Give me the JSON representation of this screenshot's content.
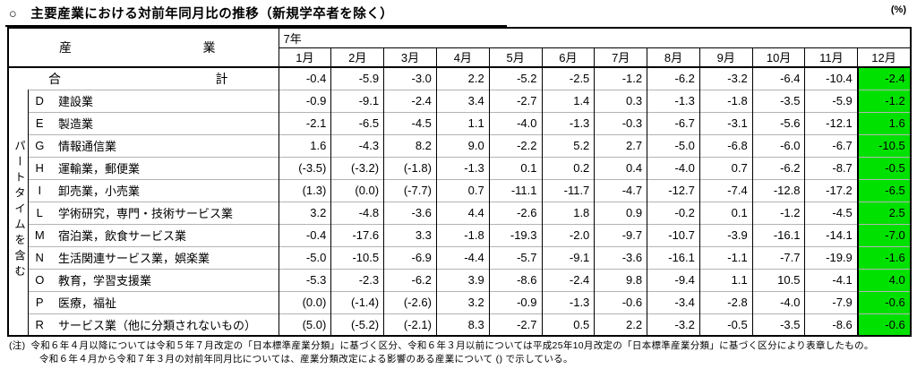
{
  "page": {
    "title": "○　主要産業における対前年同月比の推移（新規学卒者を除く）",
    "unit_label": "(%)"
  },
  "table": {
    "highlight_color": "#00E100",
    "industry_header": {
      "left": "産",
      "right": "業"
    },
    "year_header": "7年",
    "months": [
      "1月",
      "2月",
      "3月",
      "4月",
      "5月",
      "6月",
      "7月",
      "8月",
      "9月",
      "10月",
      "11月",
      "12月"
    ],
    "side_label": "パートタイムを含む",
    "total_row": {
      "label_left": "合",
      "label_right": "計",
      "values": [
        "-0.4",
        "-5.9",
        "-3.0",
        "2.2",
        "-5.2",
        "-2.5",
        "-1.2",
        "-6.2",
        "-3.2",
        "-6.4",
        "-10.4",
        "-2.4"
      ]
    },
    "rows": [
      {
        "code": "D",
        "name": "建設業",
        "values": [
          "-0.9",
          "-9.1",
          "-2.4",
          "3.4",
          "-2.7",
          "1.4",
          "0.3",
          "-1.3",
          "-1.8",
          "-3.5",
          "-5.9",
          "-1.2"
        ]
      },
      {
        "code": "E",
        "name": "製造業",
        "values": [
          "-2.1",
          "-6.5",
          "-4.5",
          "1.1",
          "-4.0",
          "-1.3",
          "-0.3",
          "-6.7",
          "-3.1",
          "-5.6",
          "-12.1",
          "1.6"
        ]
      },
      {
        "code": "G",
        "name": "情報通信業",
        "values": [
          "1.6",
          "-4.3",
          "8.2",
          "9.0",
          "-2.2",
          "5.2",
          "2.7",
          "-5.0",
          "-6.8",
          "-6.0",
          "-6.7",
          "-10.5"
        ]
      },
      {
        "code": "H",
        "name": "運輸業，郵便業",
        "values": [
          "(-3.5)",
          "(-3.2)",
          "(-1.8)",
          "-1.3",
          "0.1",
          "0.2",
          "0.4",
          "-4.0",
          "0.7",
          "-6.2",
          "-8.7",
          "-0.5"
        ]
      },
      {
        "code": "I",
        "name": "卸売業，小売業",
        "values": [
          "(1.3)",
          "(0.0)",
          "(-7.7)",
          "0.7",
          "-11.1",
          "-11.7",
          "-4.7",
          "-12.7",
          "-7.4",
          "-12.8",
          "-17.2",
          "-6.5"
        ]
      },
      {
        "code": "L",
        "name": "学術研究，専門・技術サービス業",
        "values": [
          "3.2",
          "-4.8",
          "-3.6",
          "4.4",
          "-2.6",
          "1.8",
          "0.9",
          "-0.2",
          "0.1",
          "-1.2",
          "-4.5",
          "2.5"
        ]
      },
      {
        "code": "M",
        "name": "宿泊業，飲食サービス業",
        "values": [
          "-0.4",
          "-17.6",
          "3.3",
          "-1.8",
          "-19.3",
          "-2.0",
          "-9.7",
          "-10.7",
          "-3.9",
          "-16.1",
          "-14.1",
          "-7.0"
        ]
      },
      {
        "code": "N",
        "name": "生活関連サービス業，娯楽業",
        "values": [
          "-5.0",
          "-10.5",
          "-6.9",
          "-4.4",
          "-5.7",
          "-9.1",
          "-3.6",
          "-16.1",
          "-1.1",
          "-7.7",
          "-19.9",
          "-1.6"
        ]
      },
      {
        "code": "O",
        "name": "教育，学習支援業",
        "values": [
          "-5.3",
          "-2.3",
          "-6.2",
          "3.9",
          "-8.6",
          "-2.4",
          "9.8",
          "-9.4",
          "1.1",
          "10.5",
          "-4.1",
          "4.0"
        ]
      },
      {
        "code": "P",
        "name": "医療，福祉",
        "values": [
          "(0.0)",
          "(-1.4)",
          "(-2.6)",
          "3.2",
          "-0.9",
          "-1.3",
          "-0.6",
          "-3.4",
          "-2.8",
          "-4.0",
          "-7.9",
          "-0.6"
        ]
      },
      {
        "code": "R",
        "name": "サービス業（他に分類されないもの）",
        "values": [
          "(5.0)",
          "(-5.2)",
          "(-2.1)",
          "8.3",
          "-2.7",
          "0.5",
          "2.2",
          "-3.2",
          "-0.5",
          "-3.5",
          "-8.6",
          "-0.6"
        ]
      }
    ]
  },
  "footnotes": {
    "label": "(注)",
    "line1": "令和６年４月以降については令和５年７月改定の「日本標準産業分類」に基づく区分、令和６年３月以前については平成25年10月改定の「日本標準産業分類」に基づく区分により表章したもの。",
    "line2": "令和６年４月から令和７年３月の対前年同月比については、産業分類改定による影響のある産業について () で示している。"
  }
}
